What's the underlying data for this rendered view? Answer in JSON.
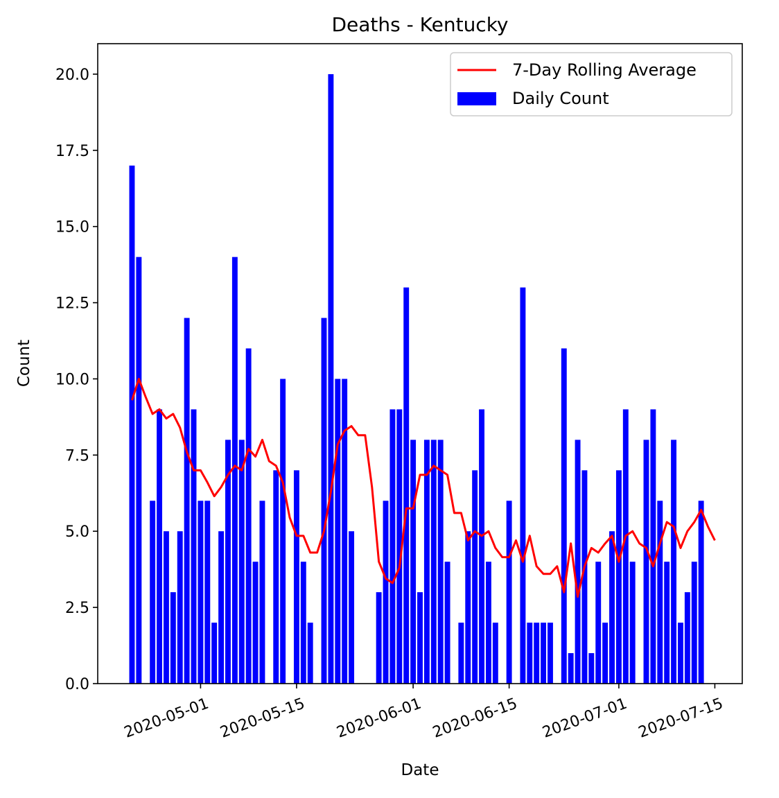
{
  "chart_data": {
    "type": "bar",
    "title": "Deaths - Kentucky",
    "xlabel": "Date",
    "ylabel": "Count",
    "ylim": [
      0,
      21
    ],
    "xlim": [
      "2020-04-16",
      "2020-07-19"
    ],
    "y_ticks": [
      0.0,
      2.5,
      5.0,
      7.5,
      10.0,
      12.5,
      15.0,
      17.5,
      20.0
    ],
    "y_tick_labels": [
      "0.0",
      "2.5",
      "5.0",
      "7.5",
      "10.0",
      "12.5",
      "15.0",
      "17.5",
      "20.0"
    ],
    "x_ticks": [
      "2020-05-01",
      "2020-05-15",
      "2020-06-01",
      "2020-06-15",
      "2020-07-01",
      "2020-07-15"
    ],
    "grid": false,
    "legend_position": "top-right",
    "series": [
      {
        "name": "Daily Count",
        "kind": "bar",
        "color": "#0000ff",
        "points": [
          [
            "2020-04-21",
            17
          ],
          [
            "2020-04-22",
            14
          ],
          [
            "2020-04-24",
            6
          ],
          [
            "2020-04-25",
            9
          ],
          [
            "2020-04-26",
            5
          ],
          [
            "2020-04-27",
            3
          ],
          [
            "2020-04-28",
            5
          ],
          [
            "2020-04-29",
            12
          ],
          [
            "2020-04-30",
            9
          ],
          [
            "2020-05-01",
            6
          ],
          [
            "2020-05-02",
            6
          ],
          [
            "2020-05-03",
            2
          ],
          [
            "2020-05-04",
            5
          ],
          [
            "2020-05-05",
            8
          ],
          [
            "2020-05-06",
            14
          ],
          [
            "2020-05-07",
            8
          ],
          [
            "2020-05-08",
            11
          ],
          [
            "2020-05-09",
            4
          ],
          [
            "2020-05-10",
            6
          ],
          [
            "2020-05-12",
            7
          ],
          [
            "2020-05-13",
            10
          ],
          [
            "2020-05-15",
            7
          ],
          [
            "2020-05-16",
            4
          ],
          [
            "2020-05-17",
            2
          ],
          [
            "2020-05-19",
            12
          ],
          [
            "2020-05-20",
            20
          ],
          [
            "2020-05-21",
            10
          ],
          [
            "2020-05-22",
            10
          ],
          [
            "2020-05-23",
            5
          ],
          [
            "2020-05-27",
            3
          ],
          [
            "2020-05-28",
            6
          ],
          [
            "2020-05-29",
            9
          ],
          [
            "2020-05-30",
            9
          ],
          [
            "2020-05-31",
            13
          ],
          [
            "2020-06-01",
            8
          ],
          [
            "2020-06-02",
            3
          ],
          [
            "2020-06-03",
            8
          ],
          [
            "2020-06-04",
            8
          ],
          [
            "2020-06-05",
            8
          ],
          [
            "2020-06-06",
            4
          ],
          [
            "2020-06-08",
            2
          ],
          [
            "2020-06-09",
            5
          ],
          [
            "2020-06-10",
            7
          ],
          [
            "2020-06-11",
            9
          ],
          [
            "2020-06-12",
            4
          ],
          [
            "2020-06-13",
            2
          ],
          [
            "2020-06-15",
            6
          ],
          [
            "2020-06-17",
            13
          ],
          [
            "2020-06-18",
            2
          ],
          [
            "2020-06-19",
            2
          ],
          [
            "2020-06-20",
            2
          ],
          [
            "2020-06-21",
            2
          ],
          [
            "2020-06-23",
            11
          ],
          [
            "2020-06-24",
            1
          ],
          [
            "2020-06-25",
            8
          ],
          [
            "2020-06-26",
            7
          ],
          [
            "2020-06-27",
            1
          ],
          [
            "2020-06-28",
            4
          ],
          [
            "2020-06-29",
            2
          ],
          [
            "2020-06-30",
            5
          ],
          [
            "2020-07-01",
            7
          ],
          [
            "2020-07-02",
            9
          ],
          [
            "2020-07-03",
            4
          ],
          [
            "2020-07-05",
            8
          ],
          [
            "2020-07-06",
            9
          ],
          [
            "2020-07-07",
            6
          ],
          [
            "2020-07-08",
            4
          ],
          [
            "2020-07-09",
            8
          ],
          [
            "2020-07-10",
            2
          ],
          [
            "2020-07-11",
            3
          ],
          [
            "2020-07-12",
            4
          ],
          [
            "2020-07-13",
            6
          ]
        ]
      },
      {
        "name": "7-Day Rolling Average",
        "kind": "line",
        "color": "#ff0000",
        "points": [
          [
            "2020-04-21",
            9.3
          ],
          [
            "2020-04-22",
            10.0
          ],
          [
            "2020-04-23",
            9.4
          ],
          [
            "2020-04-24",
            8.85
          ],
          [
            "2020-04-25",
            9.0
          ],
          [
            "2020-04-26",
            8.7
          ],
          [
            "2020-04-27",
            8.85
          ],
          [
            "2020-04-28",
            8.4
          ],
          [
            "2020-04-29",
            7.6
          ],
          [
            "2020-04-30",
            7.0
          ],
          [
            "2020-05-01",
            7.0
          ],
          [
            "2020-05-02",
            6.6
          ],
          [
            "2020-05-03",
            6.15
          ],
          [
            "2020-05-04",
            6.45
          ],
          [
            "2020-05-05",
            6.85
          ],
          [
            "2020-05-06",
            7.15
          ],
          [
            "2020-05-07",
            7.0
          ],
          [
            "2020-05-08",
            7.7
          ],
          [
            "2020-05-09",
            7.45
          ],
          [
            "2020-05-10",
            8.0
          ],
          [
            "2020-05-11",
            7.3
          ],
          [
            "2020-05-12",
            7.15
          ],
          [
            "2020-05-13",
            6.6
          ],
          [
            "2020-05-14",
            5.45
          ],
          [
            "2020-05-15",
            4.85
          ],
          [
            "2020-05-16",
            4.85
          ],
          [
            "2020-05-17",
            4.3
          ],
          [
            "2020-05-18",
            4.3
          ],
          [
            "2020-05-19",
            5.0
          ],
          [
            "2020-05-20",
            6.3
          ],
          [
            "2020-05-21",
            7.85
          ],
          [
            "2020-05-22",
            8.3
          ],
          [
            "2020-05-23",
            8.45
          ],
          [
            "2020-05-24",
            8.15
          ],
          [
            "2020-05-25",
            8.15
          ],
          [
            "2020-05-26",
            6.45
          ],
          [
            "2020-05-27",
            4.0
          ],
          [
            "2020-05-28",
            3.45
          ],
          [
            "2020-05-29",
            3.3
          ],
          [
            "2020-05-30",
            3.8
          ],
          [
            "2020-05-31",
            5.75
          ],
          [
            "2020-06-01",
            5.75
          ],
          [
            "2020-06-02",
            6.85
          ],
          [
            "2020-06-03",
            6.85
          ],
          [
            "2020-06-04",
            7.15
          ],
          [
            "2020-06-05",
            7.0
          ],
          [
            "2020-06-06",
            6.85
          ],
          [
            "2020-06-07",
            5.6
          ],
          [
            "2020-06-08",
            5.6
          ],
          [
            "2020-06-09",
            4.7
          ],
          [
            "2020-06-10",
            5.0
          ],
          [
            "2020-06-11",
            4.85
          ],
          [
            "2020-06-12",
            5.0
          ],
          [
            "2020-06-13",
            4.45
          ],
          [
            "2020-06-14",
            4.15
          ],
          [
            "2020-06-15",
            4.15
          ],
          [
            "2020-06-16",
            4.7
          ],
          [
            "2020-06-17",
            4.0
          ],
          [
            "2020-06-18",
            4.85
          ],
          [
            "2020-06-19",
            3.85
          ],
          [
            "2020-06-20",
            3.6
          ],
          [
            "2020-06-21",
            3.6
          ],
          [
            "2020-06-22",
            3.85
          ],
          [
            "2020-06-23",
            3.0
          ],
          [
            "2020-06-24",
            4.6
          ],
          [
            "2020-06-25",
            2.85
          ],
          [
            "2020-06-26",
            3.85
          ],
          [
            "2020-06-27",
            4.45
          ],
          [
            "2020-06-28",
            4.3
          ],
          [
            "2020-06-29",
            4.6
          ],
          [
            "2020-06-30",
            4.85
          ],
          [
            "2020-07-01",
            4.0
          ],
          [
            "2020-07-02",
            4.85
          ],
          [
            "2020-07-03",
            5.0
          ],
          [
            "2020-07-04",
            4.6
          ],
          [
            "2020-07-05",
            4.45
          ],
          [
            "2020-07-06",
            3.85
          ],
          [
            "2020-07-07",
            4.6
          ],
          [
            "2020-07-08",
            5.3
          ],
          [
            "2020-07-09",
            5.15
          ],
          [
            "2020-07-10",
            4.45
          ],
          [
            "2020-07-11",
            5.0
          ],
          [
            "2020-07-12",
            5.3
          ],
          [
            "2020-07-13",
            5.7
          ],
          [
            "2020-07-14",
            5.15
          ],
          [
            "2020-07-15",
            4.7
          ]
        ]
      }
    ]
  }
}
